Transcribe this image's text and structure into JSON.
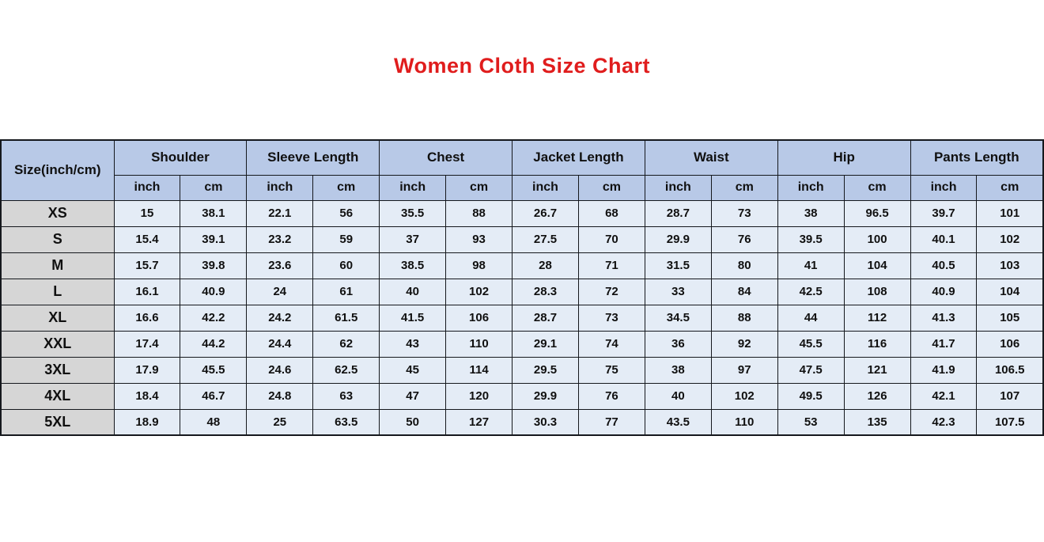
{
  "title": {
    "text": "Women Cloth Size Chart",
    "color": "#e01d1d"
  },
  "chart_data": {
    "type": "table",
    "size_header": "Size(inch/cm)",
    "unit_headers": [
      "inch",
      "cm"
    ],
    "measurements": [
      "Shoulder",
      "Sleeve Length",
      "Chest",
      "Jacket Length",
      "Waist",
      "Hip",
      "Pants Length"
    ],
    "rows": [
      {
        "size": "XS",
        "values": [
          "15",
          "38.1",
          "22.1",
          "56",
          "35.5",
          "88",
          "26.7",
          "68",
          "28.7",
          "73",
          "38",
          "96.5",
          "39.7",
          "101"
        ]
      },
      {
        "size": "S",
        "values": [
          "15.4",
          "39.1",
          "23.2",
          "59",
          "37",
          "93",
          "27.5",
          "70",
          "29.9",
          "76",
          "39.5",
          "100",
          "40.1",
          "102"
        ]
      },
      {
        "size": "M",
        "values": [
          "15.7",
          "39.8",
          "23.6",
          "60",
          "38.5",
          "98",
          "28",
          "71",
          "31.5",
          "80",
          "41",
          "104",
          "40.5",
          "103"
        ]
      },
      {
        "size": "L",
        "values": [
          "16.1",
          "40.9",
          "24",
          "61",
          "40",
          "102",
          "28.3",
          "72",
          "33",
          "84",
          "42.5",
          "108",
          "40.9",
          "104"
        ]
      },
      {
        "size": "XL",
        "values": [
          "16.6",
          "42.2",
          "24.2",
          "61.5",
          "41.5",
          "106",
          "28.7",
          "73",
          "34.5",
          "88",
          "44",
          "112",
          "41.3",
          "105"
        ]
      },
      {
        "size": "XXL",
        "values": [
          "17.4",
          "44.2",
          "24.4",
          "62",
          "43",
          "110",
          "29.1",
          "74",
          "36",
          "92",
          "45.5",
          "116",
          "41.7",
          "106"
        ]
      },
      {
        "size": "3XL",
        "values": [
          "17.9",
          "45.5",
          "24.6",
          "62.5",
          "45",
          "114",
          "29.5",
          "75",
          "38",
          "97",
          "47.5",
          "121",
          "41.9",
          "106.5"
        ]
      },
      {
        "size": "4XL",
        "values": [
          "18.4",
          "46.7",
          "24.8",
          "63",
          "47",
          "120",
          "29.9",
          "76",
          "40",
          "102",
          "49.5",
          "126",
          "42.1",
          "107"
        ]
      },
      {
        "size": "5XL",
        "values": [
          "18.9",
          "48",
          "25",
          "63.5",
          "50",
          "127",
          "30.3",
          "77",
          "43.5",
          "110",
          "53",
          "135",
          "42.3",
          "107.5"
        ]
      }
    ],
    "colors": {
      "header_bg": "#b8c9e7",
      "cell_bg": "#e4ecf6",
      "size_col_bg": "#d6d6d6",
      "border": "#15181d"
    }
  }
}
